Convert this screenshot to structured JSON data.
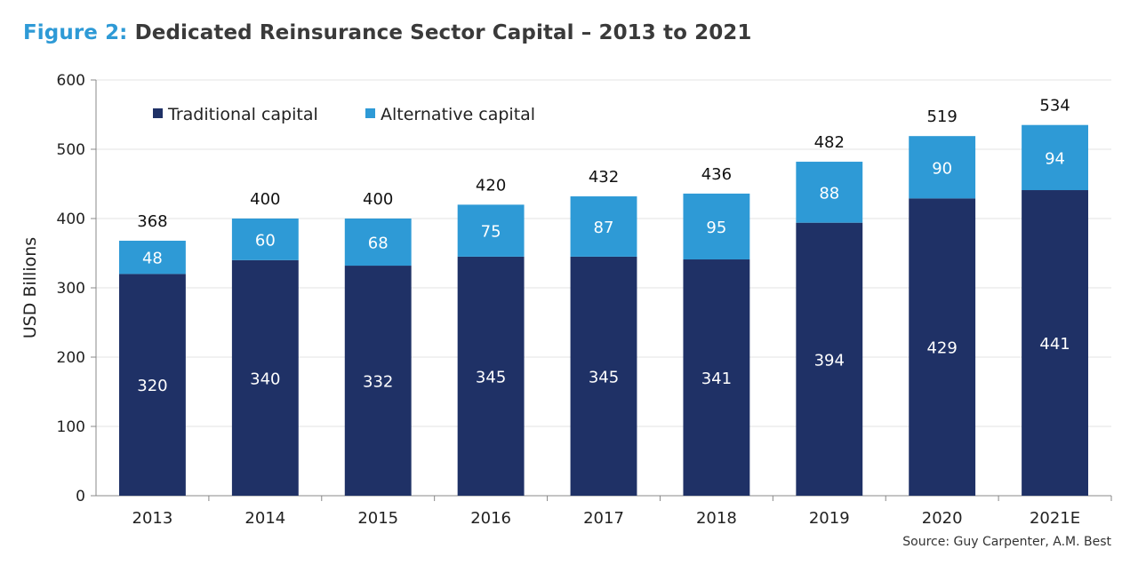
{
  "header": {
    "figure_label": "Figure 2:",
    "title_text": "Dedicated Reinsurance Sector Capital – 2013 to 2021"
  },
  "source": "Source: Guy Carpenter, A.M. Best",
  "chart_data": {
    "type": "bar",
    "stacked": true,
    "title": "Dedicated Reinsurance Sector Capital – 2013 to 2021",
    "xlabel": "",
    "ylabel": "USD Billions",
    "ylim": [
      0,
      600
    ],
    "yticks": [
      0,
      100,
      200,
      300,
      400,
      500,
      600
    ],
    "grid": true,
    "legend_position": "top-left",
    "categories": [
      "2013",
      "2014",
      "2015",
      "2016",
      "2017",
      "2018",
      "2019",
      "2020",
      "2021E"
    ],
    "series": [
      {
        "name": "Traditional capital",
        "color": "#1f3166",
        "values": [
          320,
          340,
          332,
          345,
          345,
          341,
          394,
          429,
          441
        ]
      },
      {
        "name": "Alternative capital",
        "color": "#2e9ad6",
        "values": [
          48,
          60,
          68,
          75,
          87,
          95,
          88,
          90,
          94
        ]
      }
    ],
    "totals": [
      368,
      400,
      400,
      420,
      432,
      436,
      482,
      519,
      534
    ]
  }
}
